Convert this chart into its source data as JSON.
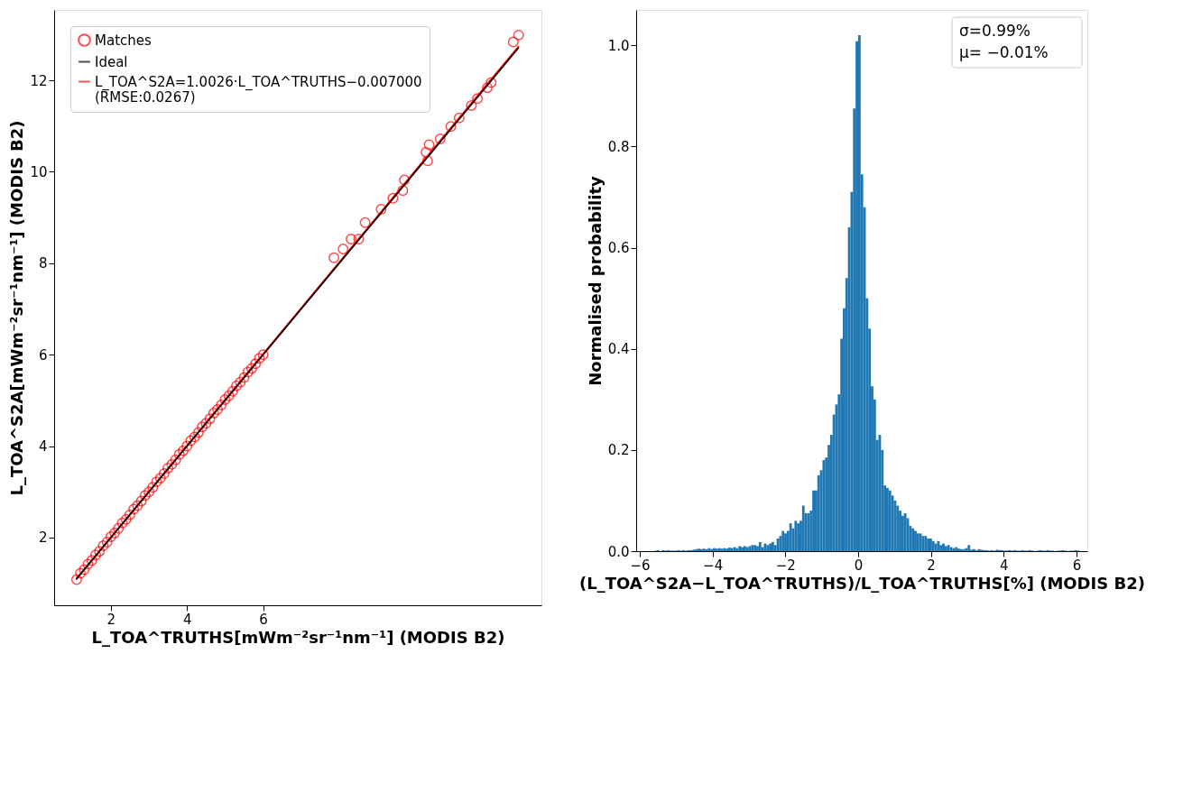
{
  "chart_data": [
    {
      "type": "scatter",
      "xlabel": "L_TOA^TRUTHS[mWm⁻²sr⁻¹nm⁻¹] (MODIS B2)",
      "ylabel": "L_TOA^S2A[mWm⁻²sr⁻¹nm⁻¹] (MODIS B2)",
      "xlim": [
        0.51,
        13.31
      ],
      "ylim": [
        0.52,
        13.54
      ],
      "xticks": [
        2,
        4,
        6
      ],
      "yticks": [
        2,
        4,
        6,
        8,
        10,
        12
      ],
      "grid": false,
      "legend": "top left",
      "series": [
        {
          "name": "Matches",
          "type": "scatter",
          "marker": "circle",
          "color": "#ff0000",
          "x": [
            1.1,
            1.2,
            1.3,
            1.4,
            1.5,
            1.6,
            1.7,
            1.8,
            1.9,
            2.0,
            2.1,
            2.2,
            2.3,
            2.4,
            2.5,
            2.6,
            2.7,
            2.8,
            2.9,
            3.0,
            3.1,
            3.2,
            3.3,
            3.4,
            3.5,
            3.6,
            3.7,
            3.8,
            3.9,
            4.0,
            4.1,
            4.2,
            4.3,
            4.4,
            4.5,
            4.6,
            4.7,
            4.8,
            4.9,
            5.0,
            5.1,
            5.2,
            5.3,
            5.4,
            5.5,
            5.6,
            5.7,
            5.8,
            5.9,
            6.0,
            7.86,
            8.1,
            8.31,
            8.51,
            8.68,
            9.1,
            9.41,
            9.67,
            9.71,
            10.28,
            10.32,
            10.36,
            10.65,
            10.93,
            11.15,
            11.47,
            11.63,
            11.89,
            11.99,
            12.57,
            12.71
          ],
          "values": [
            1.08,
            1.22,
            1.3,
            1.42,
            1.5,
            1.62,
            1.7,
            1.82,
            1.9,
            2.02,
            2.1,
            2.2,
            2.32,
            2.4,
            2.5,
            2.62,
            2.7,
            2.8,
            2.92,
            3.0,
            3.1,
            3.22,
            3.3,
            3.4,
            3.52,
            3.6,
            3.7,
            3.82,
            3.9,
            4.0,
            4.12,
            4.2,
            4.3,
            4.42,
            4.5,
            4.6,
            4.72,
            4.8,
            4.9,
            5.02,
            5.1,
            5.2,
            5.32,
            5.4,
            5.5,
            5.62,
            5.7,
            5.8,
            5.92,
            6.0,
            8.12,
            8.31,
            8.53,
            8.53,
            8.89,
            9.18,
            9.42,
            9.59,
            9.82,
            10.43,
            10.24,
            10.59,
            10.72,
            10.99,
            11.18,
            11.45,
            11.6,
            11.84,
            11.95,
            12.84,
            12.99
          ]
        },
        {
          "name": "Ideal",
          "type": "line",
          "color": "#000000",
          "x": [
            1.1,
            12.7
          ],
          "values": [
            1.1,
            12.7
          ]
        },
        {
          "name": "L_TOA^S2A=1.0026·L_TOA^TRUTHS−0.007000 (RMSE:0.0267)",
          "type": "line",
          "color": "#ff0000",
          "x": [
            1.1,
            12.7
          ],
          "values": [
            1.1,
            12.73
          ]
        }
      ]
    },
    {
      "type": "histogram",
      "color": "#1f77b4",
      "xlabel": "(L_TOA^S2A−L_TOA^TRUTHS)/L_TOA^TRUTHS[%] (MODIS B2)",
      "ylabel": "Normalised probability",
      "xlim": [
        -6.1,
        6.3
      ],
      "ylim": [
        0,
        1.07
      ],
      "xticks": [
        -6,
        -4,
        -2,
        0,
        2,
        4,
        6
      ],
      "yticks": [
        {
          "value": 0,
          "label": "0.0"
        },
        0.2,
        0.4,
        0.6,
        0.8,
        {
          "value": 1,
          "label": "1.0"
        }
      ],
      "grid": false,
      "annotations": [
        "σ=0.99%",
        "μ= −0.01%"
      ],
      "bins": [
        -5.6,
        -5.53,
        -5.46,
        -5.39,
        -5.32,
        -5.25,
        -5.18,
        -5.11,
        -5.04,
        -4.97,
        -4.9,
        -4.83,
        -4.76,
        -4.69,
        -4.62,
        -4.55,
        -4.48,
        -4.41,
        -4.34,
        -4.27,
        -4.2,
        -4.13,
        -4.06,
        -3.99,
        -3.92,
        -3.85,
        -3.78,
        -3.71,
        -3.64,
        -3.57,
        -3.5,
        -3.43,
        -3.36,
        -3.29,
        -3.22,
        -3.15,
        -3.08,
        -3.01,
        -2.94,
        -2.87,
        -2.8,
        -2.73,
        -2.66,
        -2.59,
        -2.52,
        -2.45,
        -2.38,
        -2.31,
        -2.24,
        -2.17,
        -2.1,
        -2.03,
        -1.96,
        -1.89,
        -1.82,
        -1.75,
        -1.68,
        -1.61,
        -1.54,
        -1.47,
        -1.4,
        -1.33,
        -1.26,
        -1.19,
        -1.12,
        -1.05,
        -0.98,
        -0.91,
        -0.84,
        -0.77,
        -0.7,
        -0.63,
        -0.56,
        -0.49,
        -0.42,
        -0.35,
        -0.28,
        -0.21,
        -0.14,
        -0.07,
        0,
        0.07,
        0.14,
        0.21,
        0.28,
        0.35,
        0.42,
        0.49,
        0.56,
        0.63,
        0.7,
        0.77,
        0.84,
        0.91,
        0.98,
        1.05,
        1.12,
        1.19,
        1.26,
        1.33,
        1.4,
        1.47,
        1.54,
        1.61,
        1.68,
        1.75,
        1.82,
        1.89,
        1.96,
        2.03,
        2.1,
        2.17,
        2.24,
        2.31,
        2.38,
        2.45,
        2.52,
        2.59,
        2.66,
        2.73,
        2.8,
        2.87,
        2.94,
        3.01,
        3.08,
        3.15,
        3.22,
        3.29,
        3.36,
        3.43,
        3.5,
        3.57,
        3.64,
        3.71,
        3.78,
        3.85,
        3.92,
        3.99,
        4.06,
        4.13,
        4.2,
        4.27,
        4.34,
        4.41,
        4.48,
        4.55,
        4.62,
        4.69,
        4.76,
        4.83,
        4.9,
        4.97,
        5.04,
        5.11,
        5.18,
        5.25,
        5.32,
        5.39,
        5.46,
        5.53,
        5.6,
        5.67,
        5.74,
        5.81,
        5.88,
        5.95,
        6.02,
        6.09
      ],
      "values": [
        0.001,
        0.002,
        null,
        0.002,
        0.001,
        0.002,
        0.001,
        0.001,
        0.001,
        0.002,
        0.001,
        0.002,
        0.001,
        0.002,
        0.002,
        0.003,
        0.004,
        0.005,
        0.004,
        0.005,
        0.004,
        0.006,
        0.004,
        0.006,
        0.005,
        0.006,
        0.005,
        0.006,
        0.005,
        0.007,
        0.006,
        0.008,
        0.006,
        0.01,
        0.008,
        0.01,
        0.008,
        0.01,
        0.012,
        0.012,
        0.01,
        0.018,
        0.008,
        0.015,
        0.012,
        0.015,
        0.018,
        0.012,
        0.025,
        0.03,
        0.04,
        0.035,
        0.04,
        0.055,
        0.045,
        0.06,
        0.055,
        0.06,
        0.09,
        0.075,
        0.075,
        0.08,
        0.12,
        0.12,
        0.15,
        0.16,
        0.18,
        0.185,
        0.21,
        0.23,
        0.27,
        0.29,
        0.31,
        0.42,
        0.48,
        0.54,
        0.64,
        0.71,
        0.875,
        1.008,
        1.02,
        0.745,
        0.68,
        0.5,
        0.44,
        0.326,
        0.3,
        0.22,
        0.23,
        0.2,
        0.13,
        0.125,
        0.12,
        0.11,
        0.1,
        0.09,
        0.08,
        0.07,
        0.075,
        0.065,
        0.05,
        0.045,
        0.04,
        0.035,
        0.035,
        0.03,
        0.03,
        0.025,
        0.025,
        0.02,
        0.015,
        0.02,
        0.012,
        0.015,
        0.01,
        0.012,
        0.008,
        0.006,
        0.008,
        0.005,
        0.004,
        0.004,
        0.006,
        0.012,
        0.003,
        0.004,
        0.002,
        0.004,
        0.003,
        0.002,
        0.002,
        0.001,
        0.002,
        0.001,
        0.003,
        0.002,
        0.002,
        0.001,
        0.001,
        0.002,
        0.001,
        0.002,
        0.001,
        0.001,
        0.002,
        0.001,
        0.001,
        0.002,
        0.001,
        null,
        0.001,
        0.002,
        0.001,
        0.001,
        0.002,
        0.001,
        0.001,
        null,
        0.001,
        0.001,
        0.002,
        0.001,
        null,
        0.001,
        0.001,
        0.002,
        0.001
      ]
    }
  ]
}
